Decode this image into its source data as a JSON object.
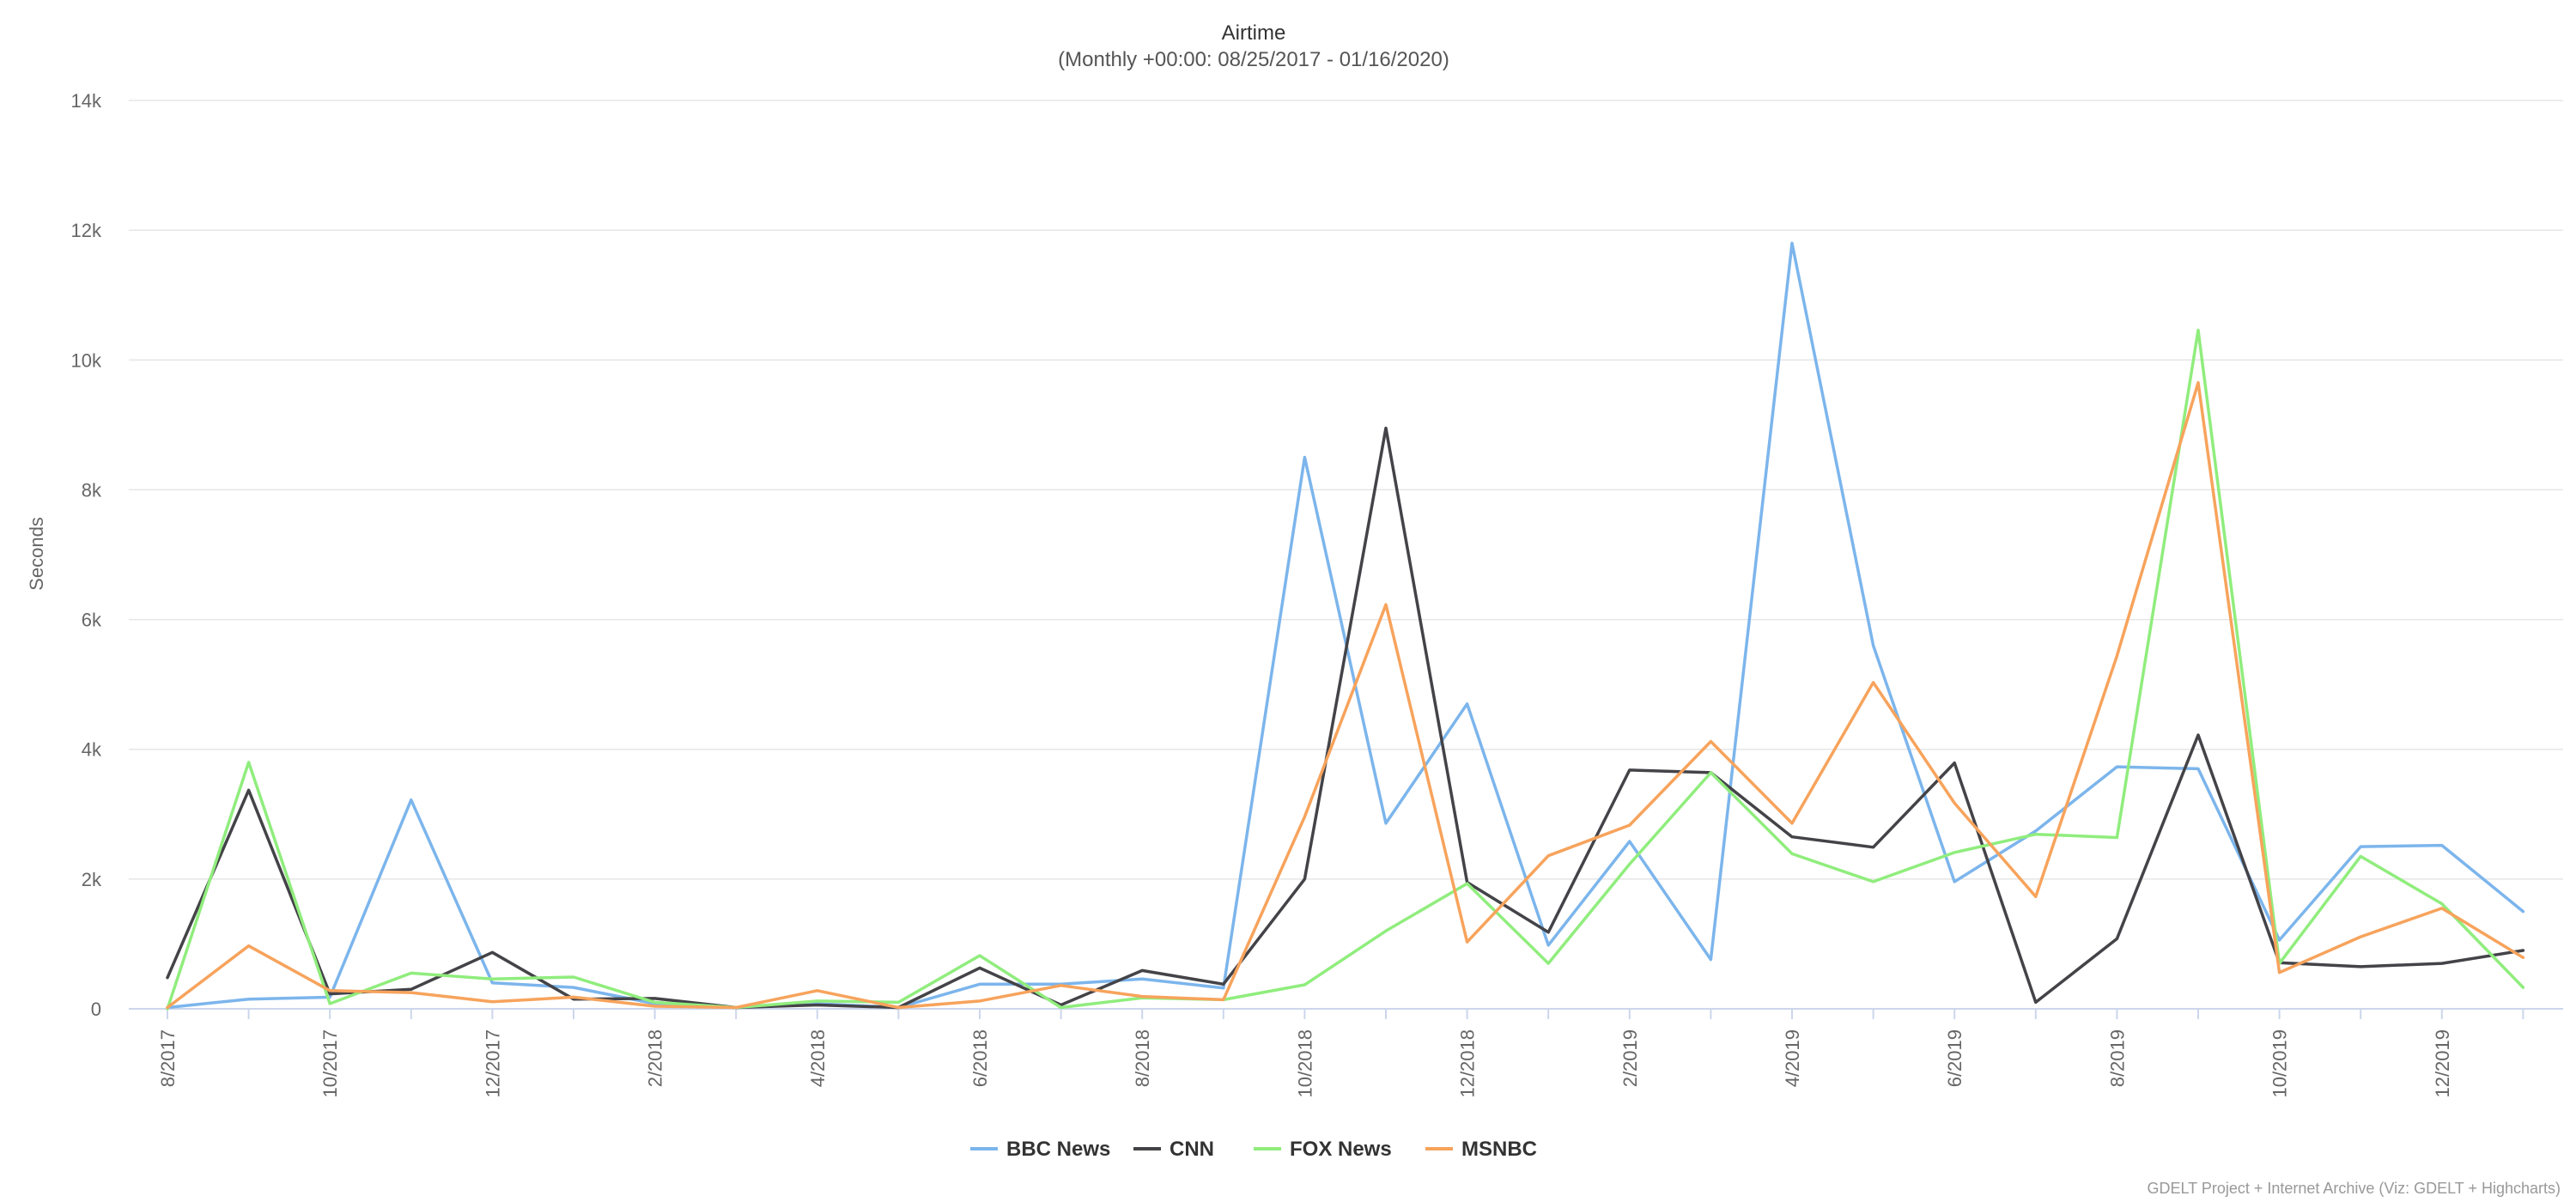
{
  "chart_data": {
    "type": "line",
    "title": "Airtime",
    "subtitle": "(Monthly +00:00: 08/25/2017 - 01/16/2020)",
    "ylabel": "Seconds",
    "xlabel": "",
    "ylim": [
      0,
      14000
    ],
    "yticks": [
      0,
      2000,
      4000,
      6000,
      8000,
      10000,
      12000,
      14000
    ],
    "ytick_labels": [
      "0",
      "2k",
      "4k",
      "6k",
      "8k",
      "10k",
      "12k",
      "14k"
    ],
    "x": [
      "8/2017",
      "9/2017",
      "10/2017",
      "11/2017",
      "12/2017",
      "1/2018",
      "2/2018",
      "3/2018",
      "4/2018",
      "5/2018",
      "6/2018",
      "7/2018",
      "8/2018",
      "9/2018",
      "10/2018",
      "11/2018",
      "12/2018",
      "1/2019",
      "2/2019",
      "3/2019",
      "4/2019",
      "5/2019",
      "6/2019",
      "7/2019",
      "8/2019",
      "9/2019",
      "10/2019",
      "11/2019",
      "12/2019",
      "1/2020"
    ],
    "xtick_labels": [
      "8/2017",
      "10/2017",
      "12/2017",
      "2/2018",
      "4/2018",
      "6/2018",
      "8/2018",
      "10/2018",
      "12/2018",
      "2/2019",
      "4/2019",
      "6/2019",
      "8/2019",
      "10/2019",
      "12/2019"
    ],
    "series": [
      {
        "name": "BBC News",
        "color": "#7cb5ec",
        "values": [
          20,
          150,
          180,
          3220,
          400,
          330,
          80,
          20,
          80,
          20,
          380,
          380,
          460,
          320,
          8500,
          2860,
          4700,
          980,
          2580,
          760,
          11800,
          5600,
          1960,
          2740,
          3730,
          3700,
          1060,
          2500,
          2520,
          1500
        ]
      },
      {
        "name": "CNN",
        "color": "#434348",
        "values": [
          480,
          3370,
          230,
          300,
          870,
          150,
          160,
          20,
          60,
          20,
          630,
          60,
          590,
          380,
          2000,
          8950,
          1950,
          1180,
          3680,
          3640,
          2650,
          2490,
          3790,
          100,
          1080,
          4220,
          710,
          650,
          700,
          900
        ]
      },
      {
        "name": "FOX News",
        "color": "#90ed7d",
        "values": [
          0,
          3800,
          80,
          550,
          460,
          490,
          100,
          20,
          120,
          100,
          820,
          20,
          170,
          140,
          370,
          1200,
          1930,
          700,
          2230,
          3640,
          2390,
          1960,
          2410,
          2690,
          2640,
          10460,
          700,
          2350,
          1620,
          330
        ]
      },
      {
        "name": "MSNBC",
        "color": "#f7a35c",
        "values": [
          20,
          970,
          280,
          250,
          110,
          180,
          40,
          20,
          280,
          20,
          120,
          360,
          190,
          140,
          2960,
          6230,
          1030,
          2360,
          2830,
          4120,
          2860,
          5030,
          3170,
          1730,
          5440,
          9650,
          560,
          1110,
          1550,
          790
        ]
      }
    ],
    "legend": [
      "BBC News",
      "CNN",
      "FOX News",
      "MSNBC"
    ],
    "legend_position": "bottom-center",
    "grid": true,
    "credits": "GDELT Project + Internet Archive (Viz: GDELT + Highcharts)"
  }
}
